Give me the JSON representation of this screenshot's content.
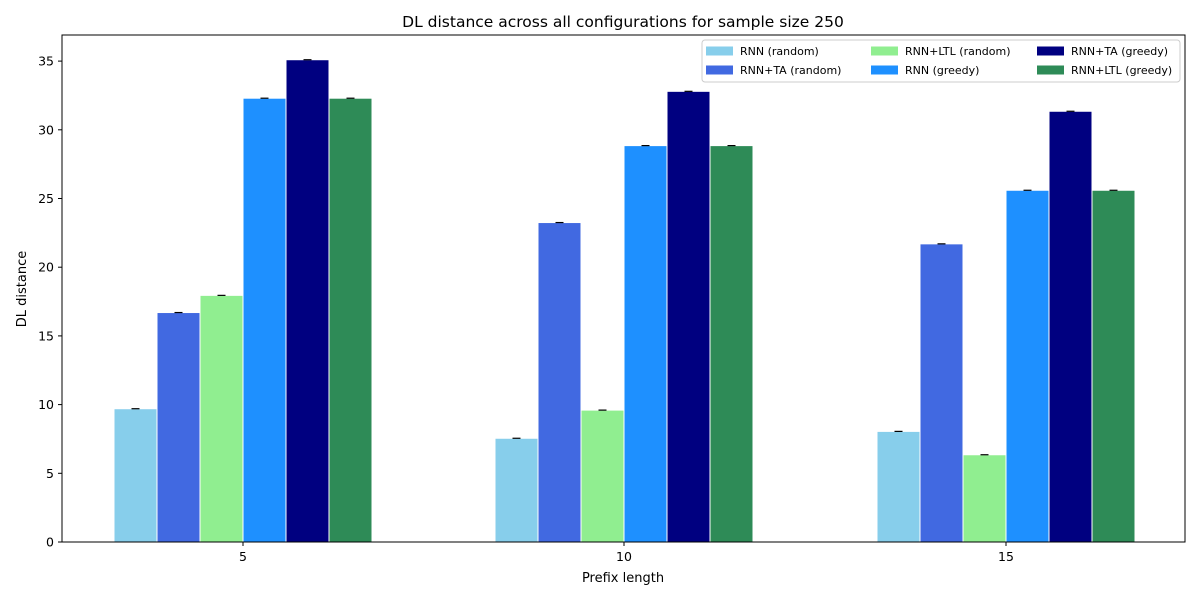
{
  "chart_data": {
    "type": "bar",
    "title": "DL distance across all configurations for sample size 250",
    "xlabel": "Prefix length",
    "ylabel": "DL distance",
    "categories": [
      "5",
      "10",
      "15"
    ],
    "ylim": [
      0,
      36.9
    ],
    "yticks": [
      0,
      5,
      10,
      15,
      20,
      25,
      30,
      35
    ],
    "grid": false,
    "legend_position": "top-right",
    "legend_columns": 3,
    "error_bars": true,
    "series": [
      {
        "name": "RNN (random)",
        "color": "#87CEEB",
        "values": [
          9.7,
          7.55,
          8.05
        ]
      },
      {
        "name": "RNN+TA (random)",
        "color": "#4169E1",
        "values": [
          16.7,
          23.25,
          21.7
        ]
      },
      {
        "name": "RNN+LTL (random)",
        "color": "#90EE90",
        "values": [
          17.95,
          9.6,
          6.35
        ]
      },
      {
        "name": "RNN (greedy)",
        "color": "#1E90FF",
        "values": [
          32.3,
          28.85,
          25.6
        ]
      },
      {
        "name": "RNN+TA (greedy)",
        "color": "#000080",
        "values": [
          35.1,
          32.8,
          31.35
        ]
      },
      {
        "name": "RNN+LTL (greedy)",
        "color": "#2E8B57",
        "values": [
          32.3,
          28.85,
          25.6
        ]
      }
    ]
  }
}
